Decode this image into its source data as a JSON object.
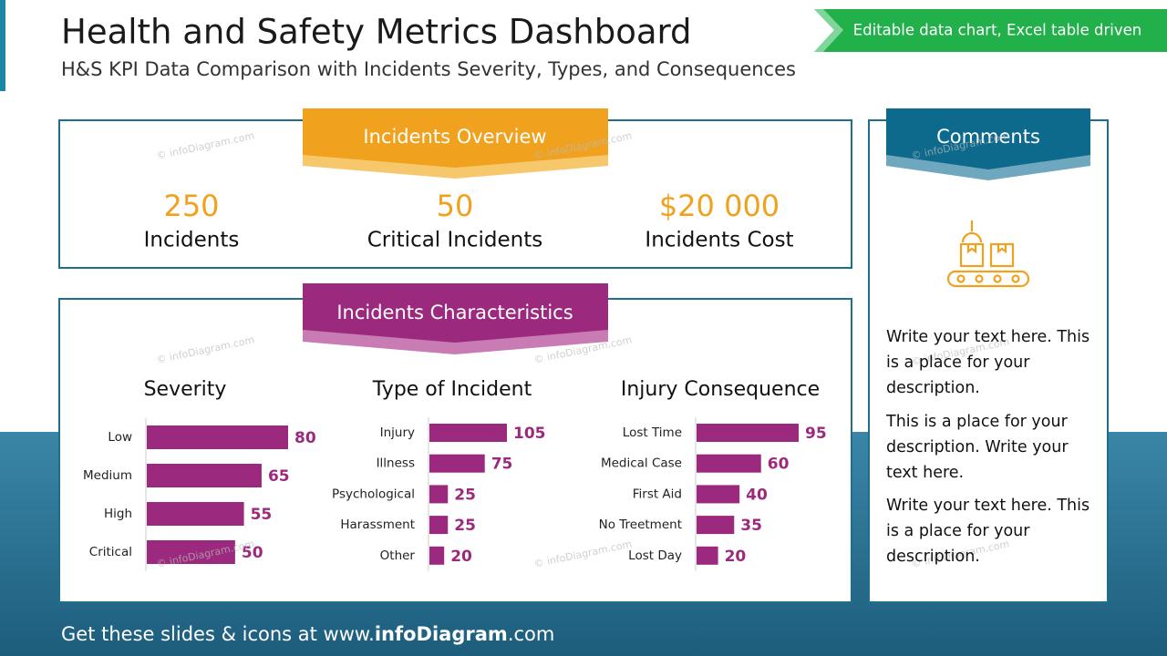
{
  "header": {
    "title": "Health and Safety Metrics Dashboard",
    "subtitle": "H&S KPI Data Comparison with Incidents Severity, Types, and Consequences",
    "badge": "Editable data chart, Excel table driven"
  },
  "overview": {
    "title": "Incidents Overview",
    "kpis": [
      {
        "value": "250",
        "label": "Incidents"
      },
      {
        "value": "50",
        "label": "Critical Incidents"
      },
      {
        "value": "$20 000",
        "label": "Incidents Cost"
      }
    ]
  },
  "characteristics": {
    "title": "Incidents Characteristics"
  },
  "chart_data": [
    {
      "type": "bar",
      "title": "Severity",
      "categories": [
        "Low",
        "Medium",
        "High",
        "Critical"
      ],
      "values": [
        80,
        65,
        55,
        50
      ],
      "color": "#9b2a7e"
    },
    {
      "type": "bar",
      "title": "Type of Incident",
      "categories": [
        "Injury",
        "Illness",
        "Psychological",
        "Harassment",
        "Other"
      ],
      "values": [
        105,
        75,
        25,
        25,
        20
      ],
      "color": "#9b2a7e"
    },
    {
      "type": "bar",
      "title": "Injury Consequence",
      "categories": [
        "Lost Time",
        "Medical Case",
        "First Aid",
        "No Treetment",
        "Lost Day"
      ],
      "values": [
        95,
        60,
        40,
        35,
        20
      ],
      "color": "#9b2a7e"
    }
  ],
  "comments": {
    "title": "Comments",
    "paragraphs": [
      "Write your text here. This is a place for your description.",
      "This is a place for your description. Write your text here.",
      "Write your text here. This is a place for your description."
    ]
  },
  "watermark": "© infoDiagram.com",
  "footer": {
    "prefix": "Get these slides & icons at www.",
    "brand": "infoDiagram",
    "suffix": ".com"
  }
}
